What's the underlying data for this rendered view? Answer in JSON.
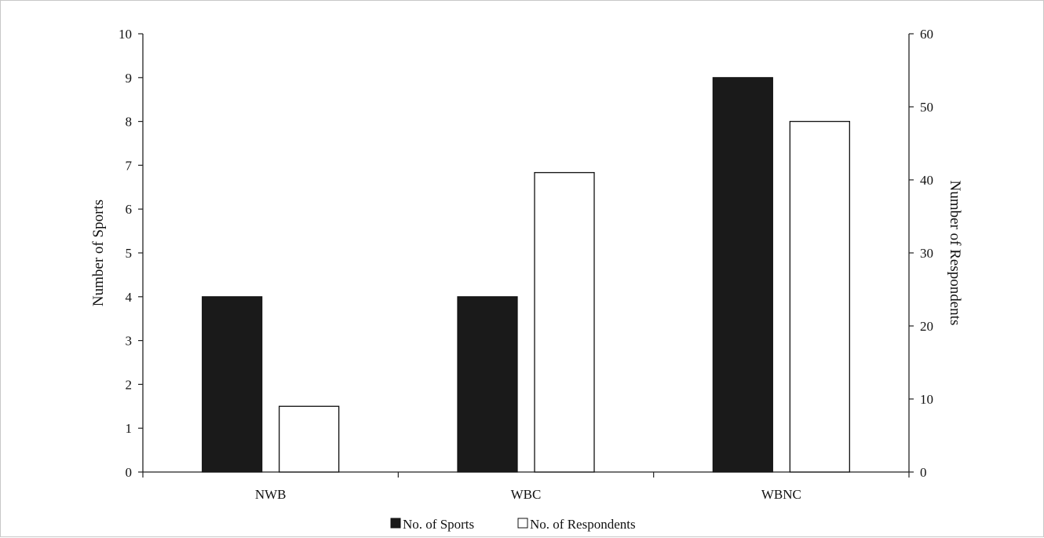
{
  "chart_data": {
    "type": "bar",
    "categories": [
      "NWB",
      "WBC",
      "WBNC"
    ],
    "series": [
      {
        "name": "No. of Sports",
        "axis": "left",
        "color": "#1a1a1a",
        "values": [
          4,
          4,
          9
        ]
      },
      {
        "name": "No. of Respondents",
        "axis": "right",
        "color": "#ffffff",
        "values": [
          9,
          41,
          48
        ]
      }
    ],
    "ylabel": "Number of Sports",
    "ylabel_right": "Number of Respondents",
    "ylim": [
      0,
      10
    ],
    "ylim_right": [
      0,
      60
    ],
    "yticks": [
      "0",
      "1",
      "2",
      "3",
      "4",
      "5",
      "6",
      "7",
      "8",
      "9",
      "10"
    ],
    "yticks_right": [
      "0",
      "10",
      "20",
      "30",
      "40",
      "50",
      "60"
    ],
    "grid": false,
    "legend_position": "bottom-center"
  }
}
